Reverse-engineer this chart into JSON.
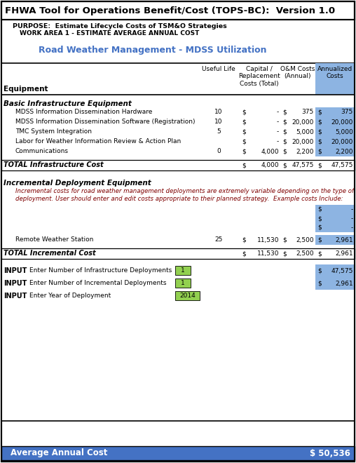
{
  "title": "FHWA Tool for Operations Benefit/Cost (TOPS-BC):  Version 1.0",
  "purpose": "PURPOSE:  Estimate Lifecycle Costs of TSM&O Strategies",
  "work_area": "WORK AREA 1 - ESTIMATE AVERAGE ANNUAL COST",
  "subtitle": "Road Weather Management - MDSS Utilization",
  "basic_infra_label": "Basic Infrastructure Equipment",
  "basic_rows": [
    {
      "name": "MDSS Information Dissemination Hardware",
      "life": "10",
      "cap": "-",
      "om": "375",
      "ann": "375"
    },
    {
      "name": "MDSS Information Dissemination Software (Registration)",
      "life": "10",
      "cap": "-",
      "om": "20,000",
      "ann": "20,000"
    },
    {
      "name": "TMC System Integration",
      "life": "5",
      "cap": "-",
      "om": "5,000",
      "ann": "5,000"
    },
    {
      "name": "Labor for Weather Information Review & Action Plan",
      "life": "",
      "cap": "-",
      "om": "20,000",
      "ann": "20,000"
    },
    {
      "name": "Communications",
      "life": "0",
      "cap": "4,000",
      "om": "2,200",
      "ann": "2,200"
    }
  ],
  "total_infra": {
    "cap": "4,000",
    "om": "47,575",
    "ann": "47,575"
  },
  "incr_label": "Incremental Deployment Equipment",
  "incr_note_line1": "Incremental costs for road weather management deployments are extremely variable depending on the type of",
  "incr_note_line2": "deployment. User should enter and edit costs appropriate to their planned strategy.  Example costs Include:",
  "incr_rows": [
    {
      "name": "Remote Weather Station",
      "life": "25",
      "cap": "11,530",
      "om": "2,500",
      "ann": "2,961"
    }
  ],
  "total_incr": {
    "cap": "11,530",
    "om": "2,500",
    "ann": "2,961"
  },
  "input_rows": [
    {
      "desc": "Enter Number of Infrastructure Deployments",
      "value": "1",
      "result": "47,575"
    },
    {
      "desc": "Enter Number of Incremental Deployments",
      "value": "1",
      "result": "2,961"
    },
    {
      "desc": "Enter Year of Deployment",
      "value": "2014",
      "result": ""
    }
  ],
  "avg_annual_label": "Average Annual Cost",
  "avg_annual_value": "$ 50,536",
  "colors": {
    "annualized_bg": "#8DB4E2",
    "green_input": "#92D050",
    "footer_bg": "#4472C4",
    "footer_text": "#FFFFFF",
    "italic_text": "#7F0000",
    "subtitle_text": "#4472C4",
    "outer_border": "#000000",
    "white": "#FFFFFF",
    "black": "#000000",
    "light_gray_line": "#AAAAAA"
  }
}
